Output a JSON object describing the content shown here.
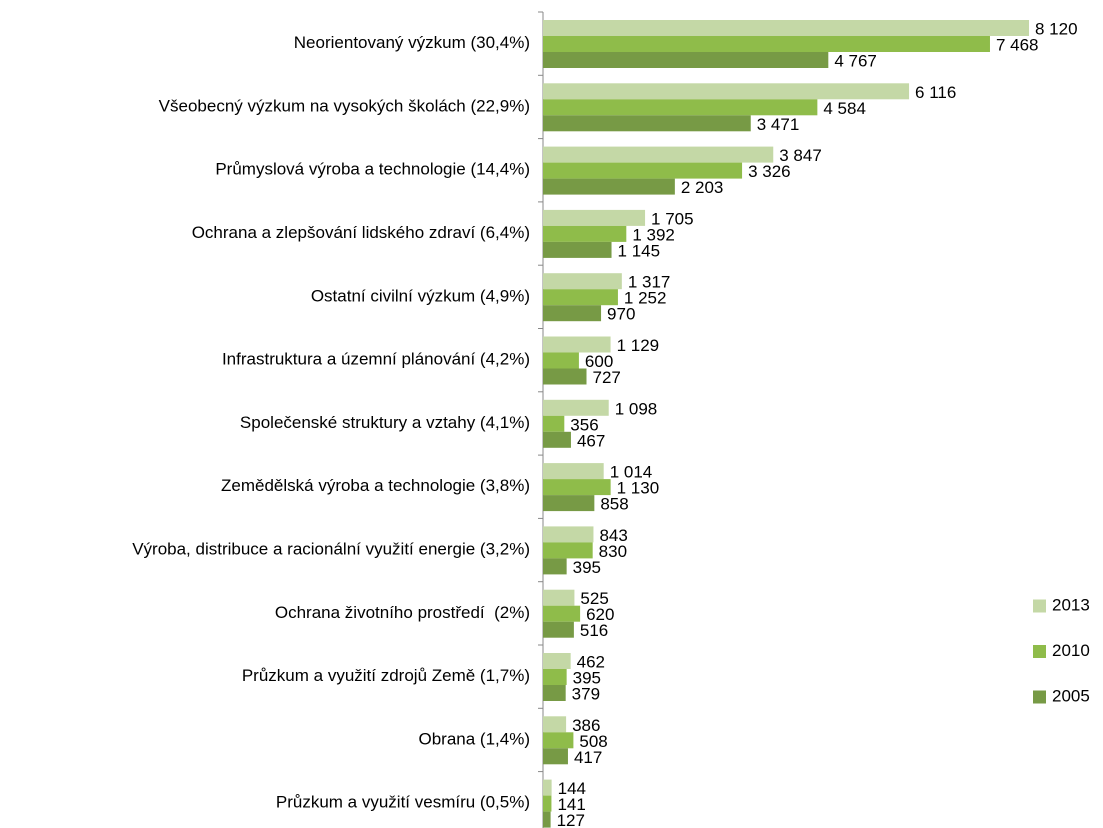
{
  "chart_data": {
    "type": "hbar",
    "categories": [
      "Neorientovaný výzkum (30,4%)",
      "Všeobecný výzkum na vysokých školách (22,9%)",
      "Průmyslová výroba a technologie (14,4%)",
      "Ochrana a zlepšování lidského zdraví (6,4%)",
      "Ostatní civilní výzkum (4,9%)",
      "Infrastruktura a územní plánování (4,2%)",
      "Společenské struktury a vztahy (4,1%)",
      "Zemědělská výroba a technologie (3,8%)",
      "Výroba, distribuce a racionální využití energie (3,2%)",
      "Ochrana životního prostředí  (2%)",
      "Průzkum a využití zdrojů Země (1,7%)",
      "Obrana (1,4%)",
      "Průzkum a využití vesmíru (0,5%)"
    ],
    "series": [
      {
        "name": "2013",
        "color": "#c4d8a6",
        "values": [
          8120,
          6116,
          3847,
          1705,
          1317,
          1129,
          1098,
          1014,
          843,
          525,
          462,
          386,
          144
        ],
        "value_labels": [
          "8 120",
          "6 116",
          "3 847",
          "1 705",
          "1 317",
          "1 129",
          "1 098",
          "1 014",
          "843",
          "525",
          "462",
          "386",
          "144"
        ]
      },
      {
        "name": "2010",
        "color": "#8fbc4a",
        "values": [
          7468,
          4584,
          3326,
          1392,
          1252,
          600,
          356,
          1130,
          830,
          620,
          395,
          508,
          141
        ],
        "value_labels": [
          "7 468",
          "4 584",
          "3 326",
          "1 392",
          "1 252",
          "600",
          "356",
          "1 130",
          "830",
          "620",
          "395",
          "508",
          "141"
        ]
      },
      {
        "name": "2005",
        "color": "#779a45",
        "values": [
          4767,
          3471,
          2203,
          1145,
          970,
          727,
          467,
          858,
          395,
          516,
          379,
          417,
          127
        ],
        "value_labels": [
          "4 767",
          "3 471",
          "2 203",
          "1 145",
          "970",
          "727",
          "467",
          "858",
          "395",
          "516",
          "379",
          "417",
          "127"
        ]
      }
    ],
    "legend": "right"
  }
}
